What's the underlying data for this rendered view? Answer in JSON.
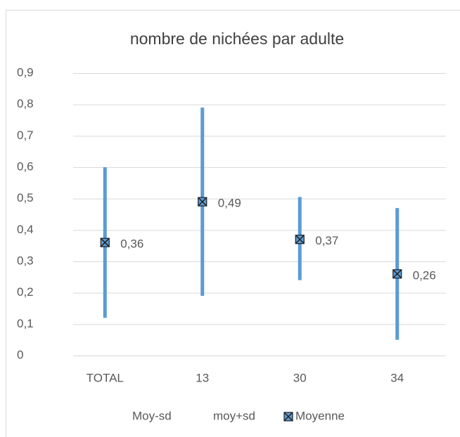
{
  "chart_data": {
    "type": "hilo",
    "title": "nombre de nichées par adulte",
    "categories": [
      "TOTAL",
      "13",
      "30",
      "34"
    ],
    "series": [
      {
        "name": "Moy-sd",
        "values": [
          0.12,
          0.19,
          0.24,
          0.05
        ]
      },
      {
        "name": "moy+sd",
        "values": [
          0.6,
          0.79,
          0.505,
          0.47
        ]
      },
      {
        "name": "Moyenne",
        "color": "#5b9bd5",
        "values": [
          0.36,
          0.49,
          0.37,
          0.26
        ],
        "value_labels": [
          "0,36",
          "0,49",
          "0,37",
          "0,26"
        ]
      }
    ],
    "hilo_color": "#5b9bd5",
    "ylim": [
      0,
      0.9
    ],
    "yticks": [
      0,
      {
        "value": 0.1,
        "label": "0,1"
      },
      {
        "value": 0.2,
        "label": "0,2"
      },
      {
        "value": 0.3,
        "label": "0,3"
      },
      {
        "value": 0.4,
        "label": "0,4"
      },
      {
        "value": 0.5,
        "label": "0,5"
      },
      {
        "value": 0.6,
        "label": "0,6"
      },
      {
        "value": 0.7,
        "label": "0,7"
      },
      {
        "value": 0.8,
        "label": "0,8"
      },
      {
        "value": 0.9,
        "label": "0,9"
      }
    ],
    "grid": true,
    "legend": "bottom"
  }
}
